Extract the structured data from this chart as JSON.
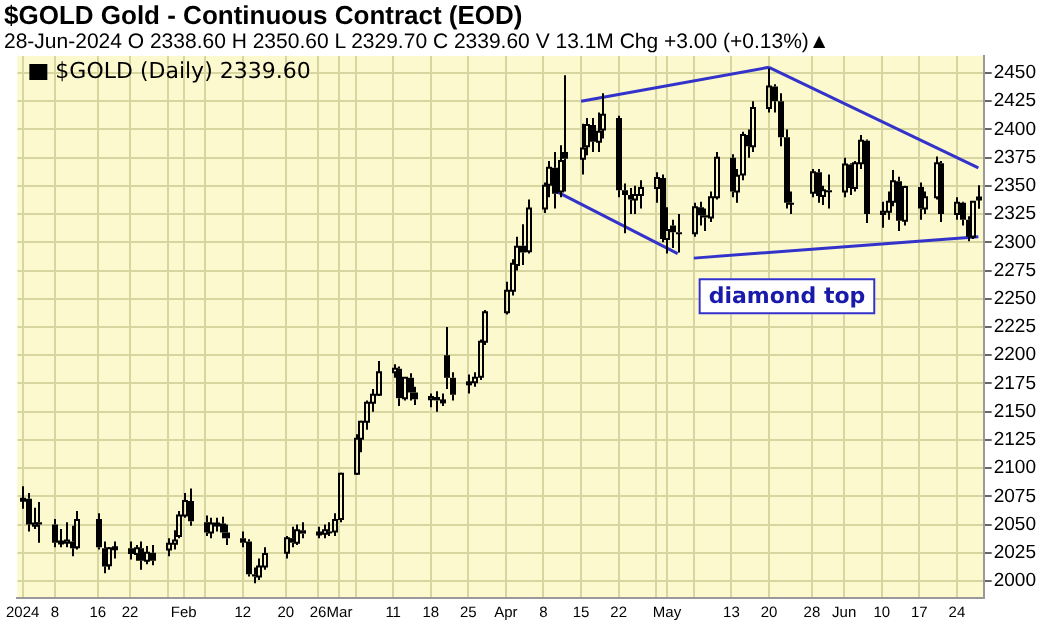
{
  "chart_data": {
    "type": "candlestick",
    "title": "$GOLD Gold - Continuous Contract (EOD)",
    "subtitle": "28-Jun-2024   O 2338.60  H 2350.60  L 2329.70  C 2339.60  V 13.1M  Chg +3.00 (+0.13%)▲",
    "series": [
      {
        "name": "$GOLD (Daily) 2339.60",
        "color": "#000000",
        "x": [
          "2024-01-02",
          "2024-01-03",
          "2024-01-04",
          "2024-01-05",
          "2024-01-08",
          "2024-01-09",
          "2024-01-10",
          "2024-01-11",
          "2024-01-12",
          "2024-01-16",
          "2024-01-17",
          "2024-01-18",
          "2024-01-19",
          "2024-01-22",
          "2024-01-23",
          "2024-01-24",
          "2024-01-25",
          "2024-01-26",
          "2024-01-29",
          "2024-01-30",
          "2024-01-31",
          "2024-02-01",
          "2024-02-02",
          "2024-02-05",
          "2024-02-06",
          "2024-02-07",
          "2024-02-08",
          "2024-02-09",
          "2024-02-12",
          "2024-02-13",
          "2024-02-14",
          "2024-02-15",
          "2024-02-16",
          "2024-02-20",
          "2024-02-21",
          "2024-02-22",
          "2024-02-23",
          "2024-02-26",
          "2024-02-27",
          "2024-02-28",
          "2024-02-29",
          "2024-03-01",
          "2024-03-04",
          "2024-03-05",
          "2024-03-06",
          "2024-03-07",
          "2024-03-08",
          "2024-03-11",
          "2024-03-12",
          "2024-03-13",
          "2024-03-14",
          "2024-03-15",
          "2024-03-18",
          "2024-03-19",
          "2024-03-20",
          "2024-03-21",
          "2024-03-22",
          "2024-03-25",
          "2024-03-26",
          "2024-03-27",
          "2024-03-28",
          "2024-04-01",
          "2024-04-02",
          "2024-04-03",
          "2024-04-04",
          "2024-04-05",
          "2024-04-08",
          "2024-04-09",
          "2024-04-10",
          "2024-04-11",
          "2024-04-12",
          "2024-04-15",
          "2024-04-16",
          "2024-04-17",
          "2024-04-18",
          "2024-04-19",
          "2024-04-22",
          "2024-04-23",
          "2024-04-24",
          "2024-04-25",
          "2024-04-26",
          "2024-04-29",
          "2024-04-30",
          "2024-05-01",
          "2024-05-02",
          "2024-05-03",
          "2024-05-06",
          "2024-05-07",
          "2024-05-08",
          "2024-05-09",
          "2024-05-10",
          "2024-05-13",
          "2024-05-14",
          "2024-05-15",
          "2024-05-16",
          "2024-05-17",
          "2024-05-20",
          "2024-05-21",
          "2024-05-22",
          "2024-05-23",
          "2024-05-24",
          "2024-05-28",
          "2024-05-29",
          "2024-05-30",
          "2024-05-31",
          "2024-06-03",
          "2024-06-04",
          "2024-06-05",
          "2024-06-06",
          "2024-06-07",
          "2024-06-10",
          "2024-06-11",
          "2024-06-12",
          "2024-06-13",
          "2024-06-14",
          "2024-06-17",
          "2024-06-18",
          "2024-06-20",
          "2024-06-21",
          "2024-06-24",
          "2024-06-25",
          "2024-06-26",
          "2024-06-27",
          "2024-06-28"
        ],
        "ohlc": [
          [
            2072,
            2084,
            2064,
            2073
          ],
          [
            2073,
            2078,
            2044,
            2050
          ],
          [
            2049,
            2065,
            2046,
            2051
          ],
          [
            2052,
            2070,
            2034,
            2050
          ],
          [
            2050,
            2055,
            2030,
            2034
          ],
          [
            2034,
            2046,
            2030,
            2035
          ],
          [
            2034,
            2052,
            2030,
            2036
          ],
          [
            2035,
            2049,
            2022,
            2029
          ],
          [
            2030,
            2062,
            2028,
            2054
          ],
          [
            2055,
            2060,
            2028,
            2030
          ],
          [
            2029,
            2035,
            2007,
            2013
          ],
          [
            2014,
            2030,
            2010,
            2029
          ],
          [
            2029,
            2035,
            2020,
            2030
          ],
          [
            2029,
            2035,
            2019,
            2024
          ],
          [
            2024,
            2032,
            2018,
            2029
          ],
          [
            2029,
            2035,
            2010,
            2018
          ],
          [
            2018,
            2031,
            2015,
            2025
          ],
          [
            2025,
            2032,
            2014,
            2018
          ],
          [
            2028,
            2038,
            2022,
            2033
          ],
          [
            2033,
            2045,
            2028,
            2036
          ],
          [
            2040,
            2062,
            2038,
            2058
          ],
          [
            2058,
            2078,
            2056,
            2071
          ],
          [
            2071,
            2082,
            2049,
            2053
          ],
          [
            2052,
            2058,
            2040,
            2043
          ],
          [
            2043,
            2056,
            2038,
            2051
          ],
          [
            2051,
            2056,
            2044,
            2051
          ],
          [
            2051,
            2057,
            2038,
            2043
          ],
          [
            2043,
            2050,
            2032,
            2038
          ],
          [
            2038,
            2044,
            2030,
            2034
          ],
          [
            2035,
            2037,
            2004,
            2006
          ],
          [
            2006,
            2012,
            1998,
            2004
          ],
          [
            2004,
            2020,
            2001,
            2013
          ],
          [
            2013,
            2030,
            2010,
            2024
          ],
          [
            2025,
            2040,
            2020,
            2038
          ],
          [
            2038,
            2048,
            2030,
            2034
          ],
          [
            2034,
            2050,
            2032,
            2045
          ],
          [
            2045,
            2052,
            2038,
            2042
          ],
          [
            2042,
            2048,
            2038,
            2043
          ],
          [
            2042,
            2050,
            2038,
            2045
          ],
          [
            2044,
            2052,
            2040,
            2043
          ],
          [
            2044,
            2060,
            2040,
            2054
          ],
          [
            2055,
            2096,
            2052,
            2095
          ],
          [
            2095,
            2130,
            2094,
            2126
          ],
          [
            2126,
            2142,
            2114,
            2141
          ],
          [
            2141,
            2160,
            2134,
            2158
          ],
          [
            2158,
            2170,
            2150,
            2165
          ],
          [
            2165,
            2195,
            2164,
            2185
          ],
          [
            2185,
            2192,
            2180,
            2188
          ],
          [
            2188,
            2190,
            2155,
            2162
          ],
          [
            2162,
            2180,
            2160,
            2180
          ],
          [
            2180,
            2184,
            2160,
            2167
          ],
          [
            2167,
            2172,
            2156,
            2161
          ],
          [
            2161,
            2166,
            2154,
            2163
          ],
          [
            2163,
            2168,
            2150,
            2160
          ],
          [
            2160,
            2166,
            2155,
            2160
          ],
          [
            2200,
            2225,
            2170,
            2180
          ],
          [
            2180,
            2185,
            2160,
            2165
          ],
          [
            2175,
            2183,
            2166,
            2176
          ],
          [
            2176,
            2185,
            2172,
            2180
          ],
          [
            2181,
            2214,
            2178,
            2212
          ],
          [
            2212,
            2240,
            2209,
            2238
          ],
          [
            2238,
            2265,
            2236,
            2257
          ],
          [
            2257,
            2285,
            2253,
            2281
          ],
          [
            2280,
            2305,
            2275,
            2296
          ],
          [
            2297,
            2316,
            2280,
            2291
          ],
          [
            2292,
            2338,
            2290,
            2330
          ],
          [
            2330,
            2353,
            2326,
            2350
          ],
          [
            2351,
            2372,
            2340,
            2366
          ],
          [
            2366,
            2380,
            2330,
            2343
          ],
          [
            2345,
            2386,
            2340,
            2372
          ],
          [
            2380,
            2448,
            2345,
            2374
          ],
          [
            2374,
            2405,
            2360,
            2383
          ],
          [
            2385,
            2410,
            2377,
            2404
          ],
          [
            2404,
            2410,
            2380,
            2389
          ],
          [
            2389,
            2415,
            2380,
            2398
          ],
          [
            2400,
            2432,
            2392,
            2413
          ],
          [
            2410,
            2412,
            2340,
            2346
          ],
          [
            2346,
            2352,
            2308,
            2342
          ],
          [
            2342,
            2348,
            2325,
            2338
          ],
          [
            2338,
            2350,
            2325,
            2342
          ],
          [
            2342,
            2355,
            2330,
            2348
          ],
          [
            2348,
            2362,
            2335,
            2357
          ],
          [
            2357,
            2360,
            2300,
            2303
          ],
          [
            2303,
            2331,
            2290,
            2311
          ],
          [
            2315,
            2320,
            2295,
            2309
          ],
          [
            2309,
            2325,
            2291,
            2308
          ],
          [
            2308,
            2335,
            2305,
            2331
          ],
          [
            2331,
            2336,
            2315,
            2324
          ],
          [
            2324,
            2330,
            2310,
            2322
          ],
          [
            2322,
            2345,
            2318,
            2340
          ],
          [
            2340,
            2380,
            2338,
            2375
          ],
          [
            2375,
            2378,
            2340,
            2345
          ],
          [
            2345,
            2365,
            2335,
            2359
          ],
          [
            2360,
            2398,
            2355,
            2395
          ],
          [
            2395,
            2400,
            2375,
            2385
          ],
          [
            2385,
            2425,
            2380,
            2419
          ],
          [
            2419,
            2454,
            2415,
            2438
          ],
          [
            2438,
            2440,
            2415,
            2425
          ],
          [
            2425,
            2432,
            2385,
            2393
          ],
          [
            2393,
            2400,
            2330,
            2335
          ],
          [
            2335,
            2345,
            2325,
            2334
          ],
          [
            2344,
            2365,
            2340,
            2362
          ],
          [
            2362,
            2365,
            2335,
            2341
          ],
          [
            2341,
            2350,
            2333,
            2346
          ],
          [
            2346,
            2360,
            2330,
            2345
          ],
          [
            2345,
            2375,
            2340,
            2369
          ],
          [
            2369,
            2370,
            2342,
            2348
          ],
          [
            2348,
            2372,
            2345,
            2370
          ],
          [
            2370,
            2395,
            2365,
            2390
          ],
          [
            2390,
            2391,
            2317,
            2325
          ],
          [
            2325,
            2336,
            2313,
            2327
          ],
          [
            2327,
            2345,
            2320,
            2336
          ],
          [
            2336,
            2364,
            2332,
            2354
          ],
          [
            2354,
            2358,
            2310,
            2319
          ],
          [
            2319,
            2350,
            2315,
            2349
          ],
          [
            2349,
            2353,
            2320,
            2330
          ],
          [
            2330,
            2345,
            2325,
            2340
          ],
          [
            2340,
            2376,
            2338,
            2370
          ],
          [
            2370,
            2372,
            2318,
            2325
          ],
          [
            2325,
            2340,
            2320,
            2335
          ],
          [
            2335,
            2336,
            2315,
            2320
          ],
          [
            2320,
            2323,
            2301,
            2305
          ],
          [
            2305,
            2336,
            2303,
            2336
          ],
          [
            2338.6,
            2350.6,
            2329.7,
            2339.6
          ]
        ]
      },
      {
        "type": "line",
        "color": "#3333cc",
        "x": [
          "2024-04-15",
          "2024-05-20"
        ],
        "values": [
          2425,
          2455
        ]
      },
      {
        "type": "line",
        "color": "#3333cc",
        "x": [
          "2024-05-20",
          "2024-06-28"
        ],
        "values": [
          2455,
          2366
        ]
      },
      {
        "type": "line",
        "color": "#3333cc",
        "x": [
          "2024-04-10",
          "2024-05-03"
        ],
        "values": [
          2346,
          2290
        ]
      },
      {
        "type": "line",
        "color": "#3333cc",
        "x": [
          "2024-05-06",
          "2024-06-28"
        ],
        "values": [
          2286,
          2305
        ]
      }
    ],
    "xticks": [
      {
        "value": "2024-01-02",
        "label": "2024"
      },
      {
        "value": "2024-01-08",
        "label": "8"
      },
      {
        "value": "2024-01-16",
        "label": "16"
      },
      {
        "value": "2024-01-22",
        "label": "22"
      },
      {
        "value": "2024-01-29",
        "label": null
      },
      {
        "value": "2024-02-01",
        "label": "Feb"
      },
      {
        "value": "2024-02-05",
        "label": null
      },
      {
        "value": "2024-02-12",
        "label": "12"
      },
      {
        "value": "2024-02-20",
        "label": "20"
      },
      {
        "value": "2024-02-26",
        "label": "26"
      },
      {
        "value": "2024-03-01",
        "label": "Mar"
      },
      {
        "value": "2024-03-04",
        "label": null
      },
      {
        "value": "2024-03-11",
        "label": "11"
      },
      {
        "value": "2024-03-18",
        "label": "18"
      },
      {
        "value": "2024-03-25",
        "label": "25"
      },
      {
        "value": "2024-04-01",
        "label": "Apr"
      },
      {
        "value": "2024-04-08",
        "label": "8"
      },
      {
        "value": "2024-04-15",
        "label": "15"
      },
      {
        "value": "2024-04-22",
        "label": "22"
      },
      {
        "value": "2024-04-29",
        "label": null
      },
      {
        "value": "2024-05-01",
        "label": "May"
      },
      {
        "value": "2024-05-06",
        "label": null
      },
      {
        "value": "2024-05-13",
        "label": "13"
      },
      {
        "value": "2024-05-20",
        "label": "20"
      },
      {
        "value": "2024-05-28",
        "label": "28"
      },
      {
        "value": "2024-06-03",
        "label": "Jun"
      },
      {
        "value": "2024-06-10",
        "label": "10"
      },
      {
        "value": "2024-06-17",
        "label": "17"
      },
      {
        "value": "2024-06-24",
        "label": "24"
      }
    ],
    "xlim": [
      "2024-01-01",
      "2024-06-29"
    ],
    "ylim": [
      1985,
      2465
    ],
    "yticks": [
      2000,
      2025,
      2050,
      2075,
      2100,
      2125,
      2150,
      2175,
      2200,
      2225,
      2250,
      2275,
      2300,
      2325,
      2350,
      2375,
      2400,
      2425,
      2450
    ],
    "grid": true,
    "legend": "top left",
    "annotations": [
      "diamond top"
    ]
  }
}
